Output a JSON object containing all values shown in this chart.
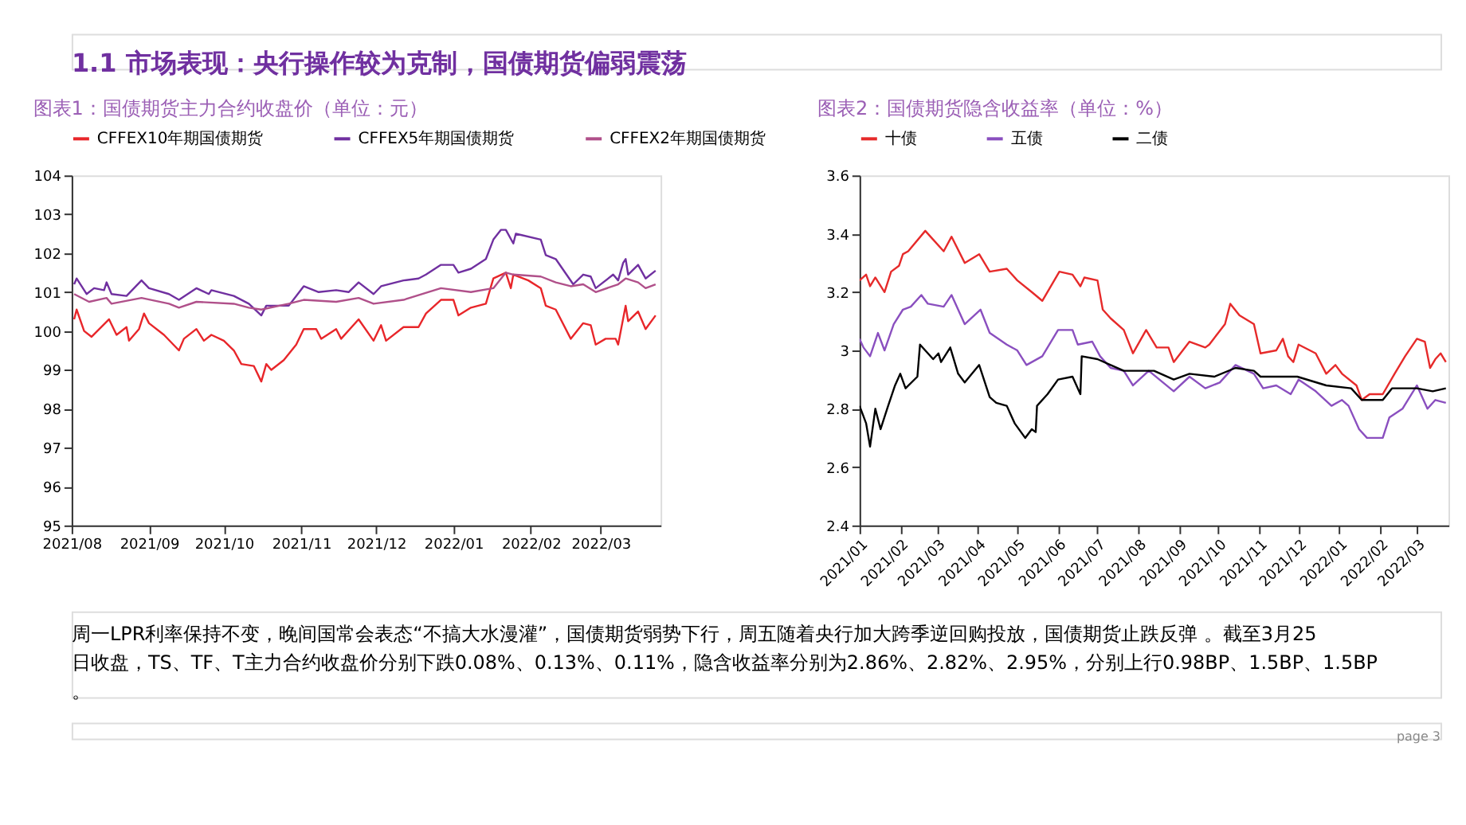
{
  "chart_data": [
    {
      "type": "line",
      "title": "图表1：国债期货主力合约收盘价（单位：元）",
      "annotations": [
        "1.1 市场表现：央行操作较为克制，国债期货偏弱震荡",
        "周一LPR利率保持不变，晚间国常会表态“不搞大水漫灌”，国债期货弱势下行，周五随着央行加大跨季逆回购投放，国债期货止跌反弹 。截至3月25日收盘，TS、TF、T主力合约收盘价分别下跌0.08%、0.13%、0.11%，隐含收益率分别为2.86%、2.82%、2.95%，分别上行0.98BP、1.5BP、1.5BP。"
      ],
      "xlim": [
        "2021-08-01",
        "2022-03-25"
      ],
      "xticks": [
        {
          "value": "2021-08-01",
          "label": "2021/08"
        },
        {
          "value": "2021-09-01",
          "label": "2021/09"
        },
        {
          "value": "2021-10-01",
          "label": "2021/10"
        },
        {
          "value": "2021-11-01",
          "label": "2021/11"
        },
        {
          "value": "2021-12-01",
          "label": "2021/12"
        },
        {
          "value": "2022-01-01",
          "label": "2022/01"
        },
        {
          "value": "2022-02-01",
          "label": "2022/02"
        },
        {
          "value": "2022-03-01",
          "label": "2022/03"
        }
      ],
      "ylim": [
        95,
        104
      ],
      "yticks": [
        95,
        96,
        97,
        98,
        99,
        100,
        101,
        102,
        103,
        104
      ],
      "grid": false,
      "legend": "top",
      "series": [
        {
          "name": "CFFEX10年期国债期货",
          "color": "#e8262a",
          "x": [
            "2021-08-02",
            "2021-08-03",
            "2021-08-06",
            "2021-08-09",
            "2021-08-16",
            "2021-08-19",
            "2021-08-23",
            "2021-08-24",
            "2021-08-28",
            "2021-08-30",
            "2021-09-01",
            "2021-09-07",
            "2021-09-13",
            "2021-09-15",
            "2021-09-20",
            "2021-09-23",
            "2021-09-26",
            "2021-10-01",
            "2021-10-05",
            "2021-10-08",
            "2021-10-13",
            "2021-10-16",
            "2021-10-18",
            "2021-10-20",
            "2021-10-25",
            "2021-10-30",
            "2021-11-02",
            "2021-11-07",
            "2021-11-09",
            "2021-11-15",
            "2021-11-17",
            "2021-11-24",
            "2021-11-30",
            "2021-12-03",
            "2021-12-05",
            "2021-12-12",
            "2021-12-18",
            "2021-12-21",
            "2021-12-27",
            "2022-01-01",
            "2022-01-03",
            "2022-01-08",
            "2022-01-14",
            "2022-01-17",
            "2022-01-22",
            "2022-01-24",
            "2022-01-25",
            "2022-01-31",
            "2022-02-05",
            "2022-02-07",
            "2022-02-11",
            "2022-02-17",
            "2022-02-22",
            "2022-02-25",
            "2022-02-27",
            "2022-03-03",
            "2022-03-07",
            "2022-03-08",
            "2022-03-11",
            "2022-03-12",
            "2022-03-16",
            "2022-03-19",
            "2022-03-23"
          ],
          "values": [
            100.3,
            100.55,
            100.0,
            99.85,
            100.3,
            99.9,
            100.1,
            99.75,
            100.05,
            100.45,
            100.2,
            99.9,
            99.5,
            99.8,
            100.05,
            99.75,
            99.9,
            99.75,
            99.5,
            99.15,
            99.1,
            98.7,
            99.15,
            99.0,
            99.25,
            99.65,
            100.05,
            100.05,
            99.8,
            100.05,
            99.8,
            100.3,
            99.75,
            100.15,
            99.75,
            100.1,
            100.1,
            100.45,
            100.8,
            100.8,
            100.4,
            100.6,
            100.7,
            101.35,
            101.5,
            101.1,
            101.45,
            101.3,
            101.1,
            100.65,
            100.55,
            99.8,
            100.2,
            100.15,
            99.65,
            99.8,
            99.8,
            99.65,
            100.65,
            100.25,
            100.5,
            100.05,
            100.4
          ]
        },
        {
          "name": "CFFEX5年期国债期货",
          "color": "#7030a0",
          "x": [
            "2021-08-02",
            "2021-08-03",
            "2021-08-07",
            "2021-08-10",
            "2021-08-14",
            "2021-08-15",
            "2021-08-17",
            "2021-08-23",
            "2021-08-29",
            "2021-09-01",
            "2021-09-09",
            "2021-09-13",
            "2021-09-20",
            "2021-09-25",
            "2021-09-26",
            "2021-10-05",
            "2021-10-11",
            "2021-10-16",
            "2021-10-18",
            "2021-10-27",
            "2021-10-30",
            "2021-11-02",
            "2021-11-08",
            "2021-11-15",
            "2021-11-20",
            "2021-11-24",
            "2021-11-30",
            "2021-12-03",
            "2021-12-12",
            "2021-12-18",
            "2021-12-21",
            "2021-12-27",
            "2022-01-01",
            "2022-01-03",
            "2022-01-08",
            "2022-01-14",
            "2022-01-17",
            "2022-01-20",
            "2022-01-22",
            "2022-01-25",
            "2022-01-26",
            "2022-02-05",
            "2022-02-07",
            "2022-02-11",
            "2022-02-18",
            "2022-02-22",
            "2022-02-25",
            "2022-02-27",
            "2022-03-06",
            "2022-03-08",
            "2022-03-10",
            "2022-03-11",
            "2022-03-12",
            "2022-03-16",
            "2022-03-19",
            "2022-03-23"
          ],
          "values": [
            101.2,
            101.35,
            100.95,
            101.1,
            101.05,
            101.25,
            100.95,
            100.9,
            101.3,
            101.1,
            100.95,
            100.8,
            101.1,
            100.95,
            101.05,
            100.9,
            100.7,
            100.4,
            100.65,
            100.65,
            100.9,
            101.15,
            101.0,
            101.05,
            101.0,
            101.25,
            100.95,
            101.15,
            101.3,
            101.35,
            101.45,
            101.7,
            101.7,
            101.5,
            101.6,
            101.85,
            102.35,
            102.6,
            102.6,
            102.25,
            102.5,
            102.35,
            101.95,
            101.85,
            101.2,
            101.45,
            101.4,
            101.1,
            101.45,
            101.3,
            101.75,
            101.85,
            101.45,
            101.7,
            101.35,
            101.55
          ]
        },
        {
          "name": "CFFEX2年期国债期货",
          "color": "#b0508a",
          "x": [
            "2021-08-02",
            "2021-08-08",
            "2021-08-15",
            "2021-08-17",
            "2021-08-29",
            "2021-09-09",
            "2021-09-13",
            "2021-09-20",
            "2021-10-05",
            "2021-10-11",
            "2021-10-16",
            "2021-10-27",
            "2021-11-02",
            "2021-11-15",
            "2021-11-24",
            "2021-11-30",
            "2021-12-12",
            "2021-12-27",
            "2022-01-08",
            "2022-01-17",
            "2022-01-22",
            "2022-01-25",
            "2022-02-05",
            "2022-02-11",
            "2022-02-17",
            "2022-02-22",
            "2022-02-27",
            "2022-03-08",
            "2022-03-11",
            "2022-03-16",
            "2022-03-19",
            "2022-03-23"
          ],
          "values": [
            100.95,
            100.75,
            100.85,
            100.7,
            100.85,
            100.7,
            100.6,
            100.75,
            100.7,
            100.6,
            100.55,
            100.7,
            100.8,
            100.75,
            100.85,
            100.7,
            100.8,
            101.1,
            101.0,
            101.1,
            101.5,
            101.45,
            101.4,
            101.25,
            101.15,
            101.2,
            101.0,
            101.2,
            101.35,
            101.25,
            101.1,
            101.2
          ]
        }
      ]
    },
    {
      "type": "line",
      "title": "图表2：国债期货隐含收益率（单位：%）",
      "annotations": [
        "page 3"
      ],
      "xlim": [
        "2021-01-01",
        "2022-03-25"
      ],
      "xticks": [
        {
          "value": "2021-01-01",
          "label": "2021/01"
        },
        {
          "value": "2021-02-01",
          "label": "2021/02"
        },
        {
          "value": "2021-03-01",
          "label": "2021/03"
        },
        {
          "value": "2021-04-01",
          "label": "2021/04"
        },
        {
          "value": "2021-05-01",
          "label": "2021/05"
        },
        {
          "value": "2021-06-01",
          "label": "2021/06"
        },
        {
          "value": "2021-07-01",
          "label": "2021/07"
        },
        {
          "value": "2021-08-01",
          "label": "2021/08"
        },
        {
          "value": "2021-09-01",
          "label": "2021/09"
        },
        {
          "value": "2021-10-01",
          "label": "2021/10"
        },
        {
          "value": "2021-11-01",
          "label": "2021/11"
        },
        {
          "value": "2021-12-01",
          "label": "2021/12"
        },
        {
          "value": "2022-01-01",
          "label": "2022/01"
        },
        {
          "value": "2022-02-01",
          "label": "2022/02"
        },
        {
          "value": "2022-03-01",
          "label": "2022/03"
        }
      ],
      "ylim": [
        2.4,
        3.6
      ],
      "yticks": [
        2.4,
        2.6,
        2.8,
        3,
        3.2,
        3.4,
        3.6
      ],
      "grid": false,
      "legend": "top",
      "series": [
        {
          "name": "十债",
          "color": "#e62a2a",
          "x": [
            "2021-01-01",
            "2021-01-06",
            "2021-01-09",
            "2021-01-13",
            "2021-01-20",
            "2021-01-25",
            "2021-01-31",
            "2021-02-03",
            "2021-02-07",
            "2021-02-20",
            "2021-02-26",
            "2021-03-06",
            "2021-03-12",
            "2021-03-22",
            "2021-04-02",
            "2021-04-10",
            "2021-04-23",
            "2021-05-01",
            "2021-05-12",
            "2021-05-20",
            "2021-06-02",
            "2021-06-12",
            "2021-06-18",
            "2021-06-21",
            "2021-07-01",
            "2021-07-05",
            "2021-07-11",
            "2021-07-21",
            "2021-07-28",
            "2021-08-07",
            "2021-08-15",
            "2021-08-24",
            "2021-08-28",
            "2021-09-09",
            "2021-09-21",
            "2021-09-24",
            "2021-10-06",
            "2021-10-10",
            "2021-10-17",
            "2021-10-28",
            "2021-11-02",
            "2021-11-14",
            "2021-11-19",
            "2021-11-23",
            "2021-11-27",
            "2021-12-01",
            "2021-12-14",
            "2021-12-22",
            "2021-12-29",
            "2022-01-03",
            "2022-01-14",
            "2022-01-18",
            "2022-01-24",
            "2022-02-03",
            "2022-02-12",
            "2022-02-20",
            "2022-03-01",
            "2022-03-07",
            "2022-03-11",
            "2022-03-15",
            "2022-03-19",
            "2022-03-23"
          ],
          "values": [
            3.24,
            3.26,
            3.22,
            3.25,
            3.2,
            3.27,
            3.29,
            3.33,
            3.34,
            3.41,
            3.38,
            3.34,
            3.39,
            3.3,
            3.33,
            3.27,
            3.28,
            3.24,
            3.2,
            3.17,
            3.27,
            3.26,
            3.22,
            3.25,
            3.24,
            3.14,
            3.11,
            3.07,
            2.99,
            3.07,
            3.01,
            3.01,
            2.96,
            3.03,
            3.01,
            3.02,
            3.09,
            3.16,
            3.12,
            3.09,
            2.99,
            3.0,
            3.04,
            2.98,
            2.96,
            3.02,
            2.99,
            2.92,
            2.95,
            2.92,
            2.88,
            2.83,
            2.85,
            2.85,
            2.92,
            2.98,
            3.04,
            3.03,
            2.94,
            2.97,
            2.99,
            2.96
          ]
        },
        {
          "name": "五债",
          "color": "#8a4fbf",
          "x": [
            "2021-01-01",
            "2021-01-04",
            "2021-01-09",
            "2021-01-15",
            "2021-01-20",
            "2021-01-27",
            "2021-02-03",
            "2021-02-09",
            "2021-02-17",
            "2021-02-22",
            "2021-03-06",
            "2021-03-12",
            "2021-03-22",
            "2021-04-03",
            "2021-04-10",
            "2021-04-23",
            "2021-05-01",
            "2021-05-08",
            "2021-05-20",
            "2021-06-01",
            "2021-06-12",
            "2021-06-16",
            "2021-06-27",
            "2021-07-03",
            "2021-07-11",
            "2021-07-21",
            "2021-07-28",
            "2021-08-09",
            "2021-08-28",
            "2021-09-09",
            "2021-09-21",
            "2021-10-02",
            "2021-10-14",
            "2021-10-28",
            "2021-11-04",
            "2021-11-14",
            "2021-11-25",
            "2021-12-01",
            "2021-12-14",
            "2021-12-26",
            "2022-01-03",
            "2022-01-08",
            "2022-01-16",
            "2022-01-22",
            "2022-02-03",
            "2022-02-08",
            "2022-02-18",
            "2022-03-01",
            "2022-03-09",
            "2022-03-15",
            "2022-03-23"
          ],
          "values": [
            3.04,
            3.01,
            2.98,
            3.06,
            3.0,
            3.09,
            3.14,
            3.15,
            3.19,
            3.16,
            3.15,
            3.19,
            3.09,
            3.14,
            3.06,
            3.02,
            3.0,
            2.95,
            2.98,
            3.07,
            3.07,
            3.02,
            3.03,
            2.98,
            2.94,
            2.93,
            2.88,
            2.93,
            2.86,
            2.91,
            2.87,
            2.89,
            2.95,
            2.92,
            2.87,
            2.88,
            2.85,
            2.9,
            2.86,
            2.81,
            2.83,
            2.81,
            2.73,
            2.7,
            2.7,
            2.77,
            2.8,
            2.88,
            2.8,
            2.83,
            2.82
          ]
        },
        {
          "name": "二债",
          "color": "#000000",
          "x": [
            "2021-01-01",
            "2021-01-06",
            "2021-01-09",
            "2021-01-13",
            "2021-01-17",
            "2021-01-22",
            "2021-01-28",
            "2021-02-01",
            "2021-02-05",
            "2021-02-14",
            "2021-02-16",
            "2021-02-26",
            "2021-03-02",
            "2021-03-04",
            "2021-03-11",
            "2021-03-17",
            "2021-03-22",
            "2021-04-02",
            "2021-04-10",
            "2021-04-15",
            "2021-04-23",
            "2021-04-29",
            "2021-05-07",
            "2021-05-12",
            "2021-05-15",
            "2021-05-16",
            "2021-05-24",
            "2021-06-01",
            "2021-06-12",
            "2021-06-18",
            "2021-06-19",
            "2021-07-01",
            "2021-07-11",
            "2021-07-21",
            "2021-08-13",
            "2021-08-28",
            "2021-09-09",
            "2021-09-28",
            "2021-10-14",
            "2021-10-28",
            "2021-11-02",
            "2021-11-30",
            "2021-12-22",
            "2022-01-10",
            "2022-01-18",
            "2022-02-03",
            "2022-02-10",
            "2022-03-01",
            "2022-03-13",
            "2022-03-23"
          ],
          "values": [
            2.81,
            2.75,
            2.67,
            2.8,
            2.73,
            2.8,
            2.88,
            2.92,
            2.87,
            2.91,
            3.02,
            2.97,
            2.99,
            2.96,
            3.01,
            2.92,
            2.89,
            2.95,
            2.84,
            2.82,
            2.81,
            2.75,
            2.7,
            2.73,
            2.72,
            2.81,
            2.85,
            2.9,
            2.91,
            2.85,
            2.98,
            2.97,
            2.95,
            2.93,
            2.93,
            2.9,
            2.92,
            2.91,
            2.94,
            2.93,
            2.91,
            2.91,
            2.88,
            2.87,
            2.83,
            2.83,
            2.87,
            2.87,
            2.86,
            2.87
          ]
        }
      ]
    }
  ]
}
